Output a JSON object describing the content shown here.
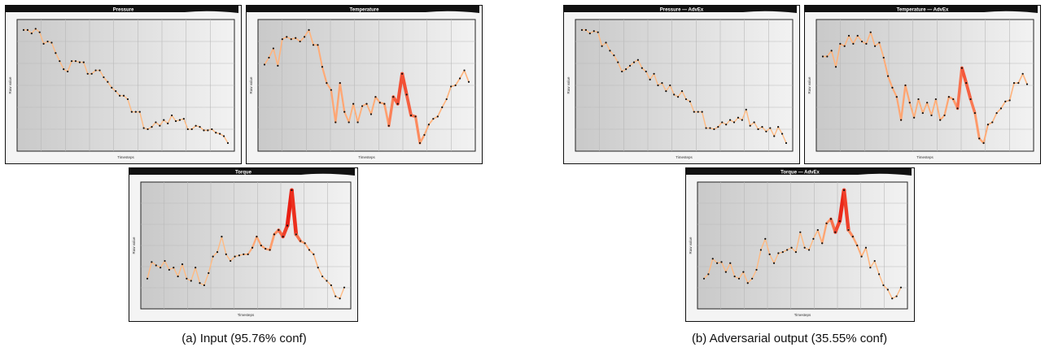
{
  "captions": {
    "left": "(a) Input (95.76% conf)",
    "right": "(b) Adversarial output (35.55% conf)"
  },
  "colors": {
    "line_low": "#ffd99a",
    "line_mid": "#ff9a6a",
    "line_high": "#e8160c",
    "plot_bg_left": "#c9c9c9",
    "plot_bg_right": "#f2f2f2",
    "frame": "#111111"
  },
  "chart_data": [
    {
      "type": "line",
      "title": "Pressure",
      "xlabel": "Timesteps",
      "ylabel": "Raw value",
      "ylim": [
        0,
        1
      ],
      "grid": true,
      "series": [
        {
          "values": [
            0.98,
            0.98,
            0.95,
            0.99,
            0.96,
            0.86,
            0.88,
            0.87,
            0.78,
            0.71,
            0.64,
            0.62,
            0.71,
            0.71,
            0.7,
            0.7,
            0.6,
            0.6,
            0.63,
            0.63,
            0.57,
            0.53,
            0.48,
            0.45,
            0.41,
            0.41,
            0.38,
            0.27,
            0.27,
            0.27,
            0.13,
            0.12,
            0.14,
            0.18,
            0.15,
            0.2,
            0.17,
            0.24,
            0.19,
            0.2,
            0.21,
            0.12,
            0.12,
            0.15,
            0.14,
            0.11,
            0.11,
            0.12,
            0.09,
            0.08,
            0.06,
            0.0
          ]
        }
      ],
      "importance": [
        0.3,
        0.3,
        0.3,
        0.3,
        0.3,
        0.3,
        0.3,
        0.3,
        0.3,
        0.3,
        0.3,
        0.3,
        0.3,
        0.3,
        0.3,
        0.3,
        0.3,
        0.3,
        0.3,
        0.3,
        0.3,
        0.3,
        0.3,
        0.3,
        0.3,
        0.3,
        0.3,
        0.3,
        0.3,
        0.3,
        0.3,
        0.3,
        0.3,
        0.3,
        0.3,
        0.3,
        0.3,
        0.3,
        0.3,
        0.3,
        0.3,
        0.3,
        0.3,
        0.3,
        0.3,
        0.3,
        0.3,
        0.3,
        0.3,
        0.3,
        0.3,
        0.3
      ]
    },
    {
      "type": "line",
      "title": "Temperature",
      "xlabel": "Timesteps",
      "ylabel": "Raw value",
      "ylim": [
        0,
        1
      ],
      "grid": true,
      "series": [
        {
          "values": [
            0.68,
            0.74,
            0.82,
            0.67,
            0.9,
            0.92,
            0.9,
            0.91,
            0.88,
            0.92,
            0.98,
            0.85,
            0.85,
            0.66,
            0.52,
            0.46,
            0.18,
            0.52,
            0.27,
            0.18,
            0.34,
            0.18,
            0.32,
            0.34,
            0.25,
            0.4,
            0.35,
            0.34,
            0.15,
            0.4,
            0.34,
            0.6,
            0.42,
            0.24,
            0.23,
            0.0,
            0.07,
            0.16,
            0.21,
            0.23,
            0.31,
            0.38,
            0.49,
            0.5,
            0.56,
            0.63,
            0.53
          ]
        }
      ],
      "importance": [
        0.35,
        0.35,
        0.35,
        0.35,
        0.35,
        0.35,
        0.35,
        0.35,
        0.35,
        0.35,
        0.35,
        0.35,
        0.4,
        0.45,
        0.45,
        0.45,
        0.5,
        0.5,
        0.45,
        0.4,
        0.4,
        0.4,
        0.4,
        0.4,
        0.4,
        0.45,
        0.45,
        0.5,
        0.6,
        0.75,
        0.8,
        0.85,
        0.8,
        0.75,
        0.7,
        0.6,
        0.45,
        0.4,
        0.35,
        0.35,
        0.35,
        0.35,
        0.35,
        0.35,
        0.35,
        0.35,
        0.35
      ]
    },
    {
      "type": "line",
      "title": "Torque",
      "xlabel": "Timesteps",
      "ylabel": "Raw value",
      "ylim": [
        0,
        1
      ],
      "grid": true,
      "series": [
        {
          "values": [
            0.2,
            0.35,
            0.32,
            0.3,
            0.36,
            0.28,
            0.3,
            0.22,
            0.33,
            0.2,
            0.18,
            0.3,
            0.16,
            0.14,
            0.25,
            0.4,
            0.44,
            0.58,
            0.42,
            0.36,
            0.4,
            0.41,
            0.42,
            0.42,
            0.48,
            0.58,
            0.5,
            0.47,
            0.46,
            0.6,
            0.64,
            0.58,
            0.68,
            1.0,
            0.6,
            0.54,
            0.52,
            0.46,
            0.42,
            0.3,
            0.22,
            0.18,
            0.14,
            0.04,
            0.02,
            0.12
          ]
        }
      ],
      "importance": [
        0.3,
        0.3,
        0.3,
        0.3,
        0.3,
        0.3,
        0.3,
        0.3,
        0.3,
        0.3,
        0.3,
        0.3,
        0.3,
        0.3,
        0.3,
        0.3,
        0.3,
        0.3,
        0.3,
        0.3,
        0.3,
        0.3,
        0.35,
        0.4,
        0.45,
        0.5,
        0.5,
        0.5,
        0.55,
        0.6,
        0.7,
        0.8,
        0.95,
        1.0,
        0.85,
        0.6,
        0.45,
        0.4,
        0.35,
        0.3,
        0.3,
        0.3,
        0.3,
        0.3,
        0.3,
        0.3
      ]
    },
    {
      "type": "line",
      "title": "Pressure — AdvEx",
      "xlabel": "Timesteps",
      "ylabel": "Raw value",
      "ylim": [
        0,
        1
      ],
      "grid": true,
      "series": [
        {
          "values": [
            0.98,
            0.98,
            0.95,
            0.97,
            0.96,
            0.84,
            0.87,
            0.8,
            0.76,
            0.7,
            0.62,
            0.64,
            0.67,
            0.7,
            0.72,
            0.65,
            0.62,
            0.55,
            0.6,
            0.5,
            0.52,
            0.45,
            0.5,
            0.42,
            0.4,
            0.45,
            0.38,
            0.36,
            0.27,
            0.27,
            0.27,
            0.13,
            0.13,
            0.12,
            0.14,
            0.18,
            0.16,
            0.2,
            0.18,
            0.22,
            0.2,
            0.29,
            0.15,
            0.18,
            0.12,
            0.14,
            0.1,
            0.13,
            0.06,
            0.14,
            0.08,
            0.0
          ]
        }
      ],
      "importance": [
        0.3,
        0.3,
        0.3,
        0.3,
        0.3,
        0.3,
        0.3,
        0.3,
        0.3,
        0.3,
        0.3,
        0.3,
        0.3,
        0.3,
        0.3,
        0.3,
        0.3,
        0.3,
        0.3,
        0.3,
        0.3,
        0.3,
        0.3,
        0.3,
        0.3,
        0.3,
        0.3,
        0.3,
        0.3,
        0.3,
        0.3,
        0.3,
        0.3,
        0.3,
        0.3,
        0.3,
        0.3,
        0.3,
        0.3,
        0.3,
        0.3,
        0.3,
        0.3,
        0.3,
        0.3,
        0.3,
        0.3,
        0.3,
        0.3,
        0.3,
        0.3,
        0.3
      ]
    },
    {
      "type": "line",
      "title": "Temperature — AdvEx",
      "xlabel": "Timesteps",
      "ylabel": "Raw value",
      "ylim": [
        0,
        1
      ],
      "grid": true,
      "series": [
        {
          "values": [
            0.75,
            0.75,
            0.8,
            0.66,
            0.86,
            0.84,
            0.93,
            0.86,
            0.93,
            0.88,
            0.86,
            0.96,
            0.84,
            0.87,
            0.74,
            0.58,
            0.48,
            0.4,
            0.2,
            0.5,
            0.35,
            0.22,
            0.38,
            0.26,
            0.35,
            0.24,
            0.38,
            0.2,
            0.24,
            0.4,
            0.38,
            0.3,
            0.65,
            0.52,
            0.38,
            0.26,
            0.04,
            0.0,
            0.16,
            0.18,
            0.26,
            0.3,
            0.36,
            0.37,
            0.52,
            0.52,
            0.6,
            0.51
          ]
        }
      ],
      "importance": [
        0.35,
        0.35,
        0.35,
        0.35,
        0.35,
        0.35,
        0.35,
        0.35,
        0.35,
        0.35,
        0.35,
        0.35,
        0.35,
        0.35,
        0.4,
        0.45,
        0.45,
        0.45,
        0.5,
        0.5,
        0.45,
        0.4,
        0.4,
        0.4,
        0.4,
        0.4,
        0.4,
        0.4,
        0.45,
        0.5,
        0.55,
        0.65,
        0.8,
        0.8,
        0.75,
        0.65,
        0.55,
        0.45,
        0.4,
        0.35,
        0.35,
        0.35,
        0.35,
        0.35,
        0.35,
        0.35,
        0.35,
        0.35
      ]
    },
    {
      "type": "line",
      "title": "Torque — AdvEx",
      "xlabel": "Timesteps",
      "ylabel": "Raw value",
      "ylim": [
        0,
        1
      ],
      "grid": true,
      "series": [
        {
          "values": [
            0.2,
            0.24,
            0.38,
            0.34,
            0.35,
            0.26,
            0.34,
            0.22,
            0.2,
            0.26,
            0.16,
            0.2,
            0.28,
            0.46,
            0.56,
            0.42,
            0.34,
            0.43,
            0.44,
            0.46,
            0.48,
            0.44,
            0.62,
            0.48,
            0.46,
            0.56,
            0.64,
            0.52,
            0.7,
            0.74,
            0.62,
            0.72,
            1.0,
            0.64,
            0.58,
            0.5,
            0.4,
            0.48,
            0.3,
            0.36,
            0.24,
            0.14,
            0.1,
            0.02,
            0.04,
            0.12
          ]
        }
      ],
      "importance": [
        0.3,
        0.3,
        0.3,
        0.3,
        0.3,
        0.3,
        0.3,
        0.3,
        0.3,
        0.3,
        0.3,
        0.3,
        0.3,
        0.3,
        0.3,
        0.3,
        0.3,
        0.3,
        0.3,
        0.3,
        0.3,
        0.3,
        0.3,
        0.3,
        0.3,
        0.3,
        0.35,
        0.45,
        0.55,
        0.65,
        0.8,
        0.9,
        1.0,
        0.75,
        0.55,
        0.45,
        0.4,
        0.35,
        0.3,
        0.3,
        0.3,
        0.3,
        0.3,
        0.3,
        0.3,
        0.3
      ]
    }
  ]
}
